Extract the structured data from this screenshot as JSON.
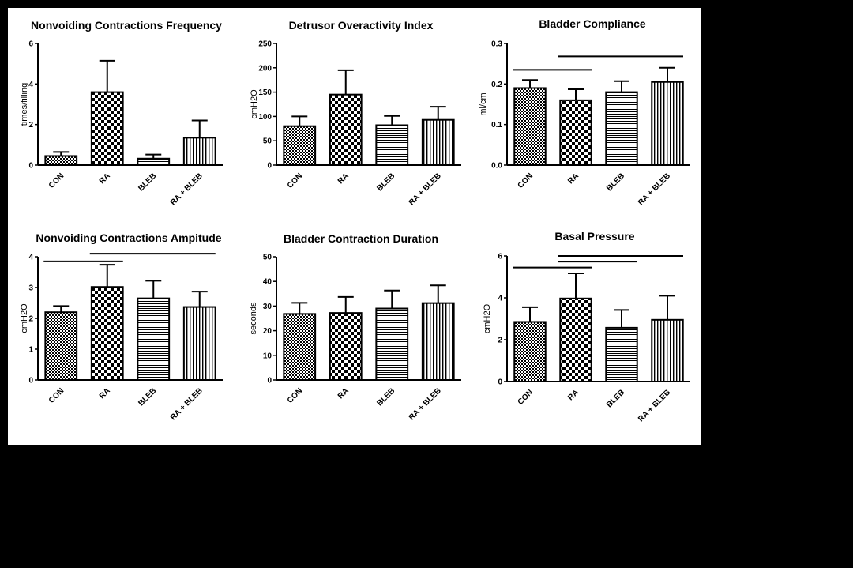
{
  "chart_data": [
    {
      "type": "bar",
      "title": "Nonvoiding Contractions Frequency",
      "xlabel": "",
      "ylabel": "times/filling",
      "categories": [
        "CON",
        "RA",
        "BLEB",
        "RA + BLEB"
      ],
      "values": [
        0.45,
        3.6,
        0.32,
        1.35
      ],
      "errors": [
        0.2,
        1.55,
        0.2,
        0.85
      ],
      "ylim": [
        0,
        6
      ],
      "yticks": [
        "0",
        "2",
        "4",
        "6"
      ],
      "significance_lines": []
    },
    {
      "type": "bar",
      "title": "Detrusor Overactivity Index",
      "xlabel": "",
      "ylabel": "cmH2O",
      "categories": [
        "CON",
        "RA",
        "BLEB",
        "RA + BLEB"
      ],
      "values": [
        80,
        145,
        82,
        93
      ],
      "errors": [
        20,
        50,
        19,
        27
      ],
      "ylim": [
        0,
        250
      ],
      "yticks": [
        "0",
        "50",
        "100",
        "150",
        "200",
        "250"
      ],
      "significance_lines": []
    },
    {
      "type": "bar",
      "title": "Bladder Compliance",
      "xlabel": "",
      "ylabel": "ml/cm",
      "categories": [
        "CON",
        "RA",
        "BLEB",
        "RA + BLEB"
      ],
      "values": [
        0.19,
        0.16,
        0.18,
        0.205
      ],
      "errors": [
        0.02,
        0.027,
        0.027,
        0.035
      ],
      "ylim": [
        0,
        0.3
      ],
      "yticks": [
        "0.0",
        "0.1",
        "0.2",
        "0.3"
      ],
      "significance_lines": [
        {
          "from": "CON",
          "to": "RA",
          "y": 0.235
        },
        {
          "from": "RA",
          "to": "RA + BLEB",
          "y": 0.268
        }
      ]
    },
    {
      "type": "bar",
      "title": "Nonvoiding Contractions Ampitude",
      "xlabel": "",
      "ylabel": "cmH2O",
      "categories": [
        "CON",
        "RA",
        "BLEB",
        "RA + BLEB"
      ],
      "values": [
        2.2,
        3.02,
        2.65,
        2.37
      ],
      "errors": [
        0.2,
        0.72,
        0.57,
        0.5
      ],
      "ylim": [
        0,
        4
      ],
      "yticks": [
        "0",
        "1",
        "2",
        "3",
        "4"
      ],
      "significance_lines": [
        {
          "from": "CON",
          "to": "RA",
          "y": 3.85
        },
        {
          "from": "RA",
          "to": "RA + BLEB",
          "y": 4.1
        }
      ]
    },
    {
      "type": "bar",
      "title": "Bladder Contraction Duration",
      "xlabel": "",
      "ylabel": "seconds",
      "categories": [
        "CON",
        "RA",
        "BLEB",
        "RA + BLEB"
      ],
      "values": [
        26.8,
        27.2,
        29,
        31.2
      ],
      "errors": [
        4.5,
        6.5,
        7.3,
        7.2
      ],
      "ylim": [
        0,
        50
      ],
      "yticks": [
        "0",
        "10",
        "20",
        "30",
        "40",
        "50"
      ],
      "significance_lines": []
    },
    {
      "type": "bar",
      "title": "Basal Pressure",
      "xlabel": "",
      "ylabel": "cmH2O",
      "categories": [
        "CON",
        "RA",
        "BLEB",
        "RA + BLEB"
      ],
      "values": [
        2.85,
        3.97,
        2.57,
        2.95
      ],
      "errors": [
        0.7,
        1.2,
        0.85,
        1.15
      ],
      "ylim": [
        0,
        6
      ],
      "yticks": [
        "0",
        "2",
        "4",
        "6"
      ],
      "significance_lines": [
        {
          "from": "CON",
          "to": "RA",
          "y": 5.45
        },
        {
          "from": "RA",
          "to": "BLEB",
          "y": 5.73
        },
        {
          "from": "RA",
          "to": "RA + BLEB",
          "y": 6.0
        }
      ]
    }
  ]
}
